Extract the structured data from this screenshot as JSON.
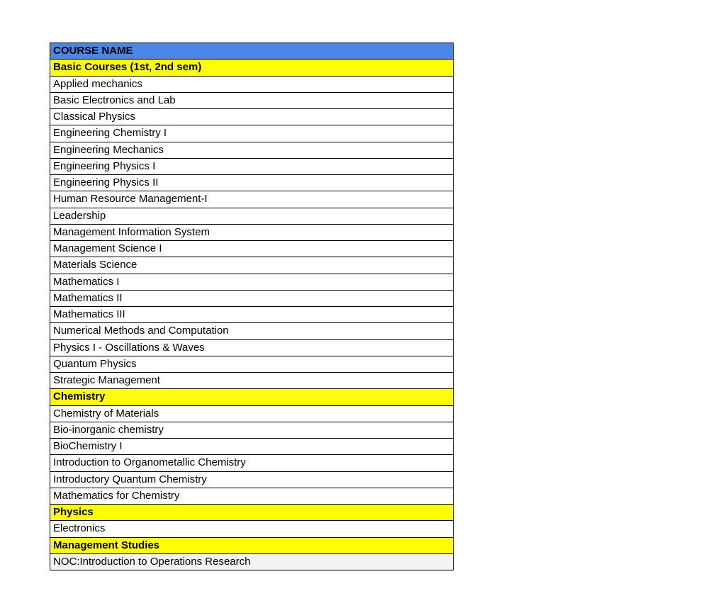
{
  "table": {
    "header": {
      "text": "COURSE NAME",
      "bg_color": "#4a86e8",
      "font_weight": "bold"
    },
    "sections": [
      {
        "title": "Basic Courses (1st, 2nd sem)",
        "bg_color": "#ffff00",
        "font_weight": "bold",
        "courses": [
          "Applied mechanics",
          "Basic Electronics and Lab",
          "Classical Physics",
          "Engineering Chemistry I",
          "Engineering Mechanics",
          "Engineering Physics I",
          "Engineering Physics II",
          "Human Resource Management-I",
          "Leadership",
          "Management Information System",
          "Management Science I",
          "Materials Science",
          "Mathematics I",
          "Mathematics II",
          "Mathematics III",
          "Numerical Methods and Computation",
          "Physics I - Oscillations & Waves",
          "Quantum Physics",
          "Strategic Management"
        ]
      },
      {
        "title": "Chemistry",
        "bg_color": "#ffff00",
        "font_weight": "bold",
        "courses": [
          "Chemistry of Materials",
          "Bio-inorganic chemistry",
          "BioChemistry I",
          "Introduction to Organometallic Chemistry",
          "Introductory Quantum Chemistry",
          "Mathematics for Chemistry"
        ]
      },
      {
        "title": "Physics",
        "bg_color": "#ffff00",
        "font_weight": "bold",
        "courses": [
          "Electronics"
        ]
      },
      {
        "title": "Management Studies",
        "bg_color": "#ffff00",
        "font_weight": "bold",
        "courses_special": [
          {
            "text": "NOC:Introduction to Operations Research",
            "bg_color": "#f3f3f3"
          }
        ]
      }
    ],
    "colors": {
      "header_bg": "#4a86e8",
      "section_bg": "#ffff00",
      "row_bg": "#ffffff",
      "special_row_bg": "#f3f3f3",
      "border": "#000000",
      "text": "#000000"
    }
  }
}
